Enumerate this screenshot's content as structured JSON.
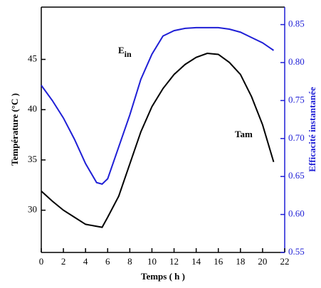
{
  "chart_data": {
    "type": "line",
    "x_label": "Temps ( h )",
    "y_label": "Température (°C )",
    "y2_label": "Efficacité instantanée",
    "x": [
      0,
      1,
      2,
      3,
      4,
      5,
      5.5,
      6,
      7,
      8,
      9,
      10,
      11,
      12,
      13,
      14,
      15,
      16,
      17,
      18,
      19,
      20,
      21
    ],
    "xlim": [
      0,
      22
    ],
    "xticks": [
      0,
      2,
      4,
      6,
      8,
      10,
      12,
      14,
      16,
      18,
      20,
      22
    ],
    "ylim": [
      25.8,
      50.2
    ],
    "yticks": [
      30,
      35,
      40,
      45
    ],
    "y2lim": [
      0.55,
      0.873
    ],
    "y2ticks": [
      0.55,
      0.6,
      0.65,
      0.7,
      0.75,
      0.8,
      0.85
    ],
    "y2_color": "#1f1fd6",
    "series": [
      {
        "name": "E",
        "name_sub": "in",
        "color": "#1f1fd6",
        "axis": "y2",
        "values": [
          0.77,
          0.75,
          0.727,
          0.699,
          0.667,
          0.642,
          0.64,
          0.647,
          0.689,
          0.731,
          0.778,
          0.811,
          0.835,
          0.842,
          0.845,
          0.846,
          0.846,
          0.846,
          0.844,
          0.84,
          0.833,
          0.826,
          0.816
        ]
      },
      {
        "name": "Tam",
        "color": "#000000",
        "values": [
          31.9,
          30.9,
          30.0,
          29.3,
          28.6,
          28.4,
          28.3,
          29.3,
          31.4,
          34.6,
          37.8,
          40.3,
          42.1,
          43.5,
          44.5,
          45.2,
          45.6,
          45.5,
          44.7,
          43.5,
          41.3,
          38.5,
          34.8
        ]
      }
    ]
  }
}
